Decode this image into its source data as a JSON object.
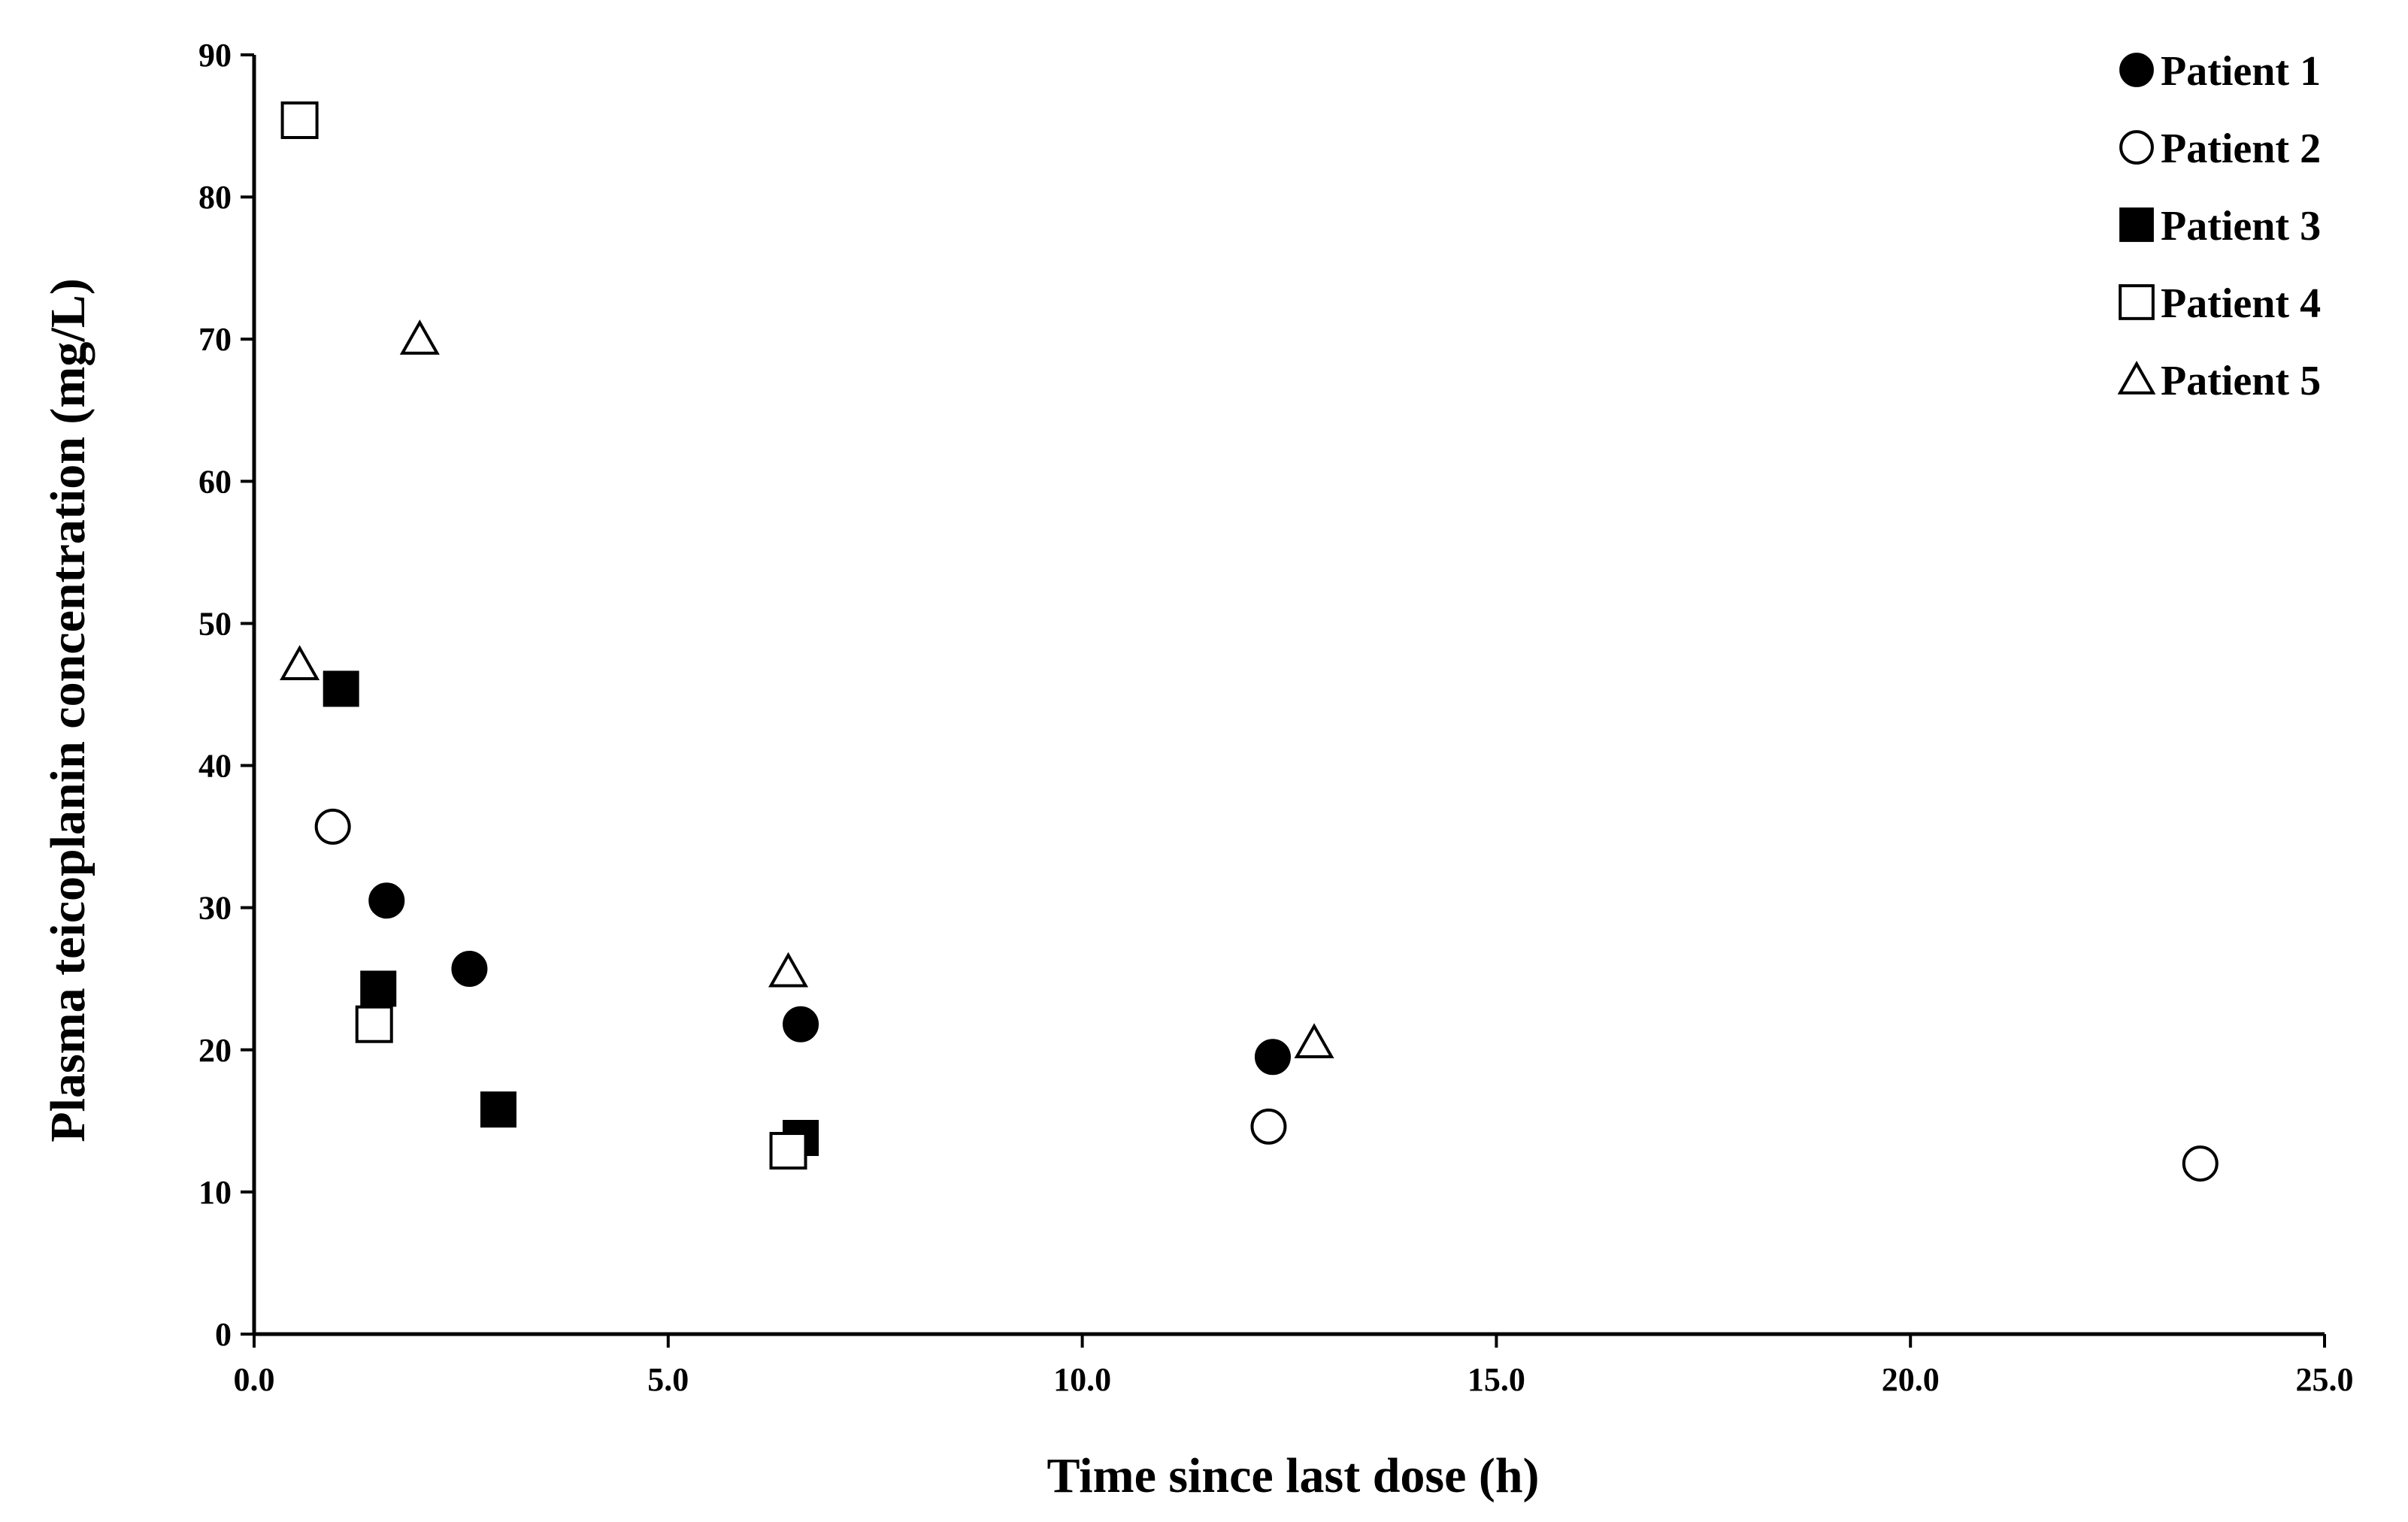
{
  "chart_data": {
    "type": "scatter",
    "title": "",
    "xlabel": "Time since last dose (h)",
    "ylabel": "Plasma teicoplanin concentration (mg/L)",
    "xlim": [
      0,
      25
    ],
    "ylim": [
      0,
      90
    ],
    "x_ticks": [
      "0.0",
      "5.0",
      "10.0",
      "15.0",
      "20.0",
      "25.0"
    ],
    "y_ticks": [
      "0",
      "10",
      "20",
      "30",
      "40",
      "50",
      "60",
      "70",
      "80",
      "90"
    ],
    "grid": false,
    "legend_position": "top-right",
    "series": [
      {
        "name": "Patient 1",
        "marker": "filled-circle",
        "points": [
          [
            1.6,
            30.5
          ],
          [
            2.6,
            25.7
          ],
          [
            6.6,
            21.8
          ],
          [
            12.3,
            19.5
          ]
        ]
      },
      {
        "name": "Patient 2",
        "marker": "open-circle",
        "points": [
          [
            0.95,
            35.7
          ],
          [
            12.25,
            14.6
          ],
          [
            23.5,
            12.0
          ]
        ]
      },
      {
        "name": "Patient 3",
        "marker": "filled-square",
        "points": [
          [
            1.05,
            45.4
          ],
          [
            1.5,
            24.3
          ],
          [
            2.95,
            15.8
          ],
          [
            6.6,
            13.8
          ]
        ]
      },
      {
        "name": "Patient 4",
        "marker": "open-square",
        "points": [
          [
            0.55,
            85.4
          ],
          [
            1.45,
            21.8
          ],
          [
            6.45,
            12.9
          ]
        ]
      },
      {
        "name": "Patient 5",
        "marker": "open-triangle",
        "points": [
          [
            0.55,
            47.1
          ],
          [
            2.0,
            70.0
          ],
          [
            6.45,
            25.5
          ],
          [
            12.8,
            20.5
          ]
        ]
      }
    ]
  }
}
